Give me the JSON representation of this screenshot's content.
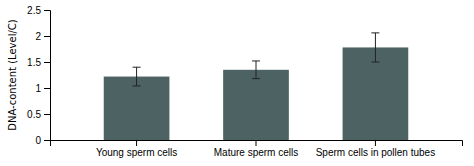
{
  "chart_data": {
    "type": "bar",
    "categories": [
      "Young sperm cells",
      "Mature sperm cells",
      "Sperm cells in pollen tubes"
    ],
    "values": [
      1.22,
      1.35,
      1.78
    ],
    "errors": [
      0.18,
      0.17,
      0.28
    ],
    "color": "#4d6363",
    "ylabel": "DNA-content (Level/C)",
    "ylim": [
      0,
      2.5
    ],
    "yticks": [
      0,
      0.5,
      1,
      1.5,
      2,
      2.5
    ]
  }
}
